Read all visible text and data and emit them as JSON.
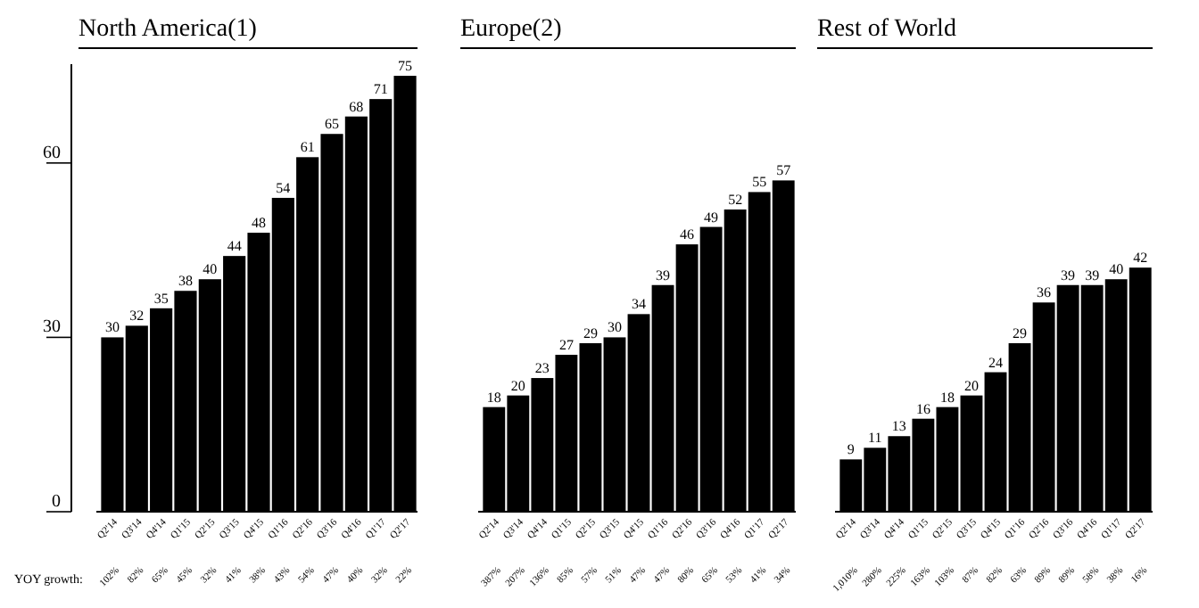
{
  "chart_data": [
    {
      "type": "bar",
      "title": "North America(1)",
      "categories": [
        "Q2'14",
        "Q3'14",
        "Q4'14",
        "Q1'15",
        "Q2'15",
        "Q3'15",
        "Q4'15",
        "Q1'16",
        "Q2'16",
        "Q3'16",
        "Q4'16",
        "Q1'17",
        "Q2'17"
      ],
      "values": [
        30,
        32,
        35,
        38,
        40,
        44,
        48,
        54,
        61,
        65,
        68,
        71,
        75
      ],
      "color": "#000000",
      "data_labels": true,
      "ylim": [
        0,
        77
      ],
      "yticks": [
        0,
        30,
        60
      ],
      "annotations": [
        "YOY growth:",
        "102%",
        "82%",
        "65%",
        "45%",
        "32%",
        "41%",
        "38%",
        "43%",
        "54%",
        "47%",
        "40%",
        "32%",
        "22%"
      ]
    },
    {
      "type": "bar",
      "title": "Europe(2)",
      "categories": [
        "Q2'14",
        "Q3'14",
        "Q4'14",
        "Q1'15",
        "Q2'15",
        "Q3'15",
        "Q4'15",
        "Q1'16",
        "Q2'16",
        "Q3'16",
        "Q4'16",
        "Q1'17",
        "Q2'17"
      ],
      "values": [
        18,
        20,
        23,
        27,
        29,
        30,
        34,
        39,
        46,
        49,
        52,
        55,
        57
      ],
      "color": "#000000",
      "data_labels": true,
      "tick_labels": "x",
      "annotations": [
        "387%",
        "207%",
        "136%",
        "85%",
        "57%",
        "51%",
        "47%",
        "47%",
        "80%",
        "65%",
        "53%",
        "41%",
        "34%"
      ]
    },
    {
      "type": "bar",
      "title": "Rest of World",
      "categories": [
        "Q2'14",
        "Q3'14",
        "Q4'14",
        "Q1'15",
        "Q2'15",
        "Q3'15",
        "Q4'15",
        "Q1'16",
        "Q2'16",
        "Q3'16",
        "Q4'16",
        "Q1'17",
        "Q2'17"
      ],
      "values": [
        9,
        11,
        13,
        16,
        18,
        20,
        24,
        29,
        36,
        39,
        39,
        40,
        42
      ],
      "color": "#000000",
      "data_labels": true,
      "tick_labels": "x",
      "annotations": [
        "1,010%",
        "280%",
        "225%",
        "163%",
        "103%",
        "87%",
        "82%",
        "63%",
        "89%",
        "89%",
        "58%",
        "38%",
        "16%"
      ]
    }
  ]
}
